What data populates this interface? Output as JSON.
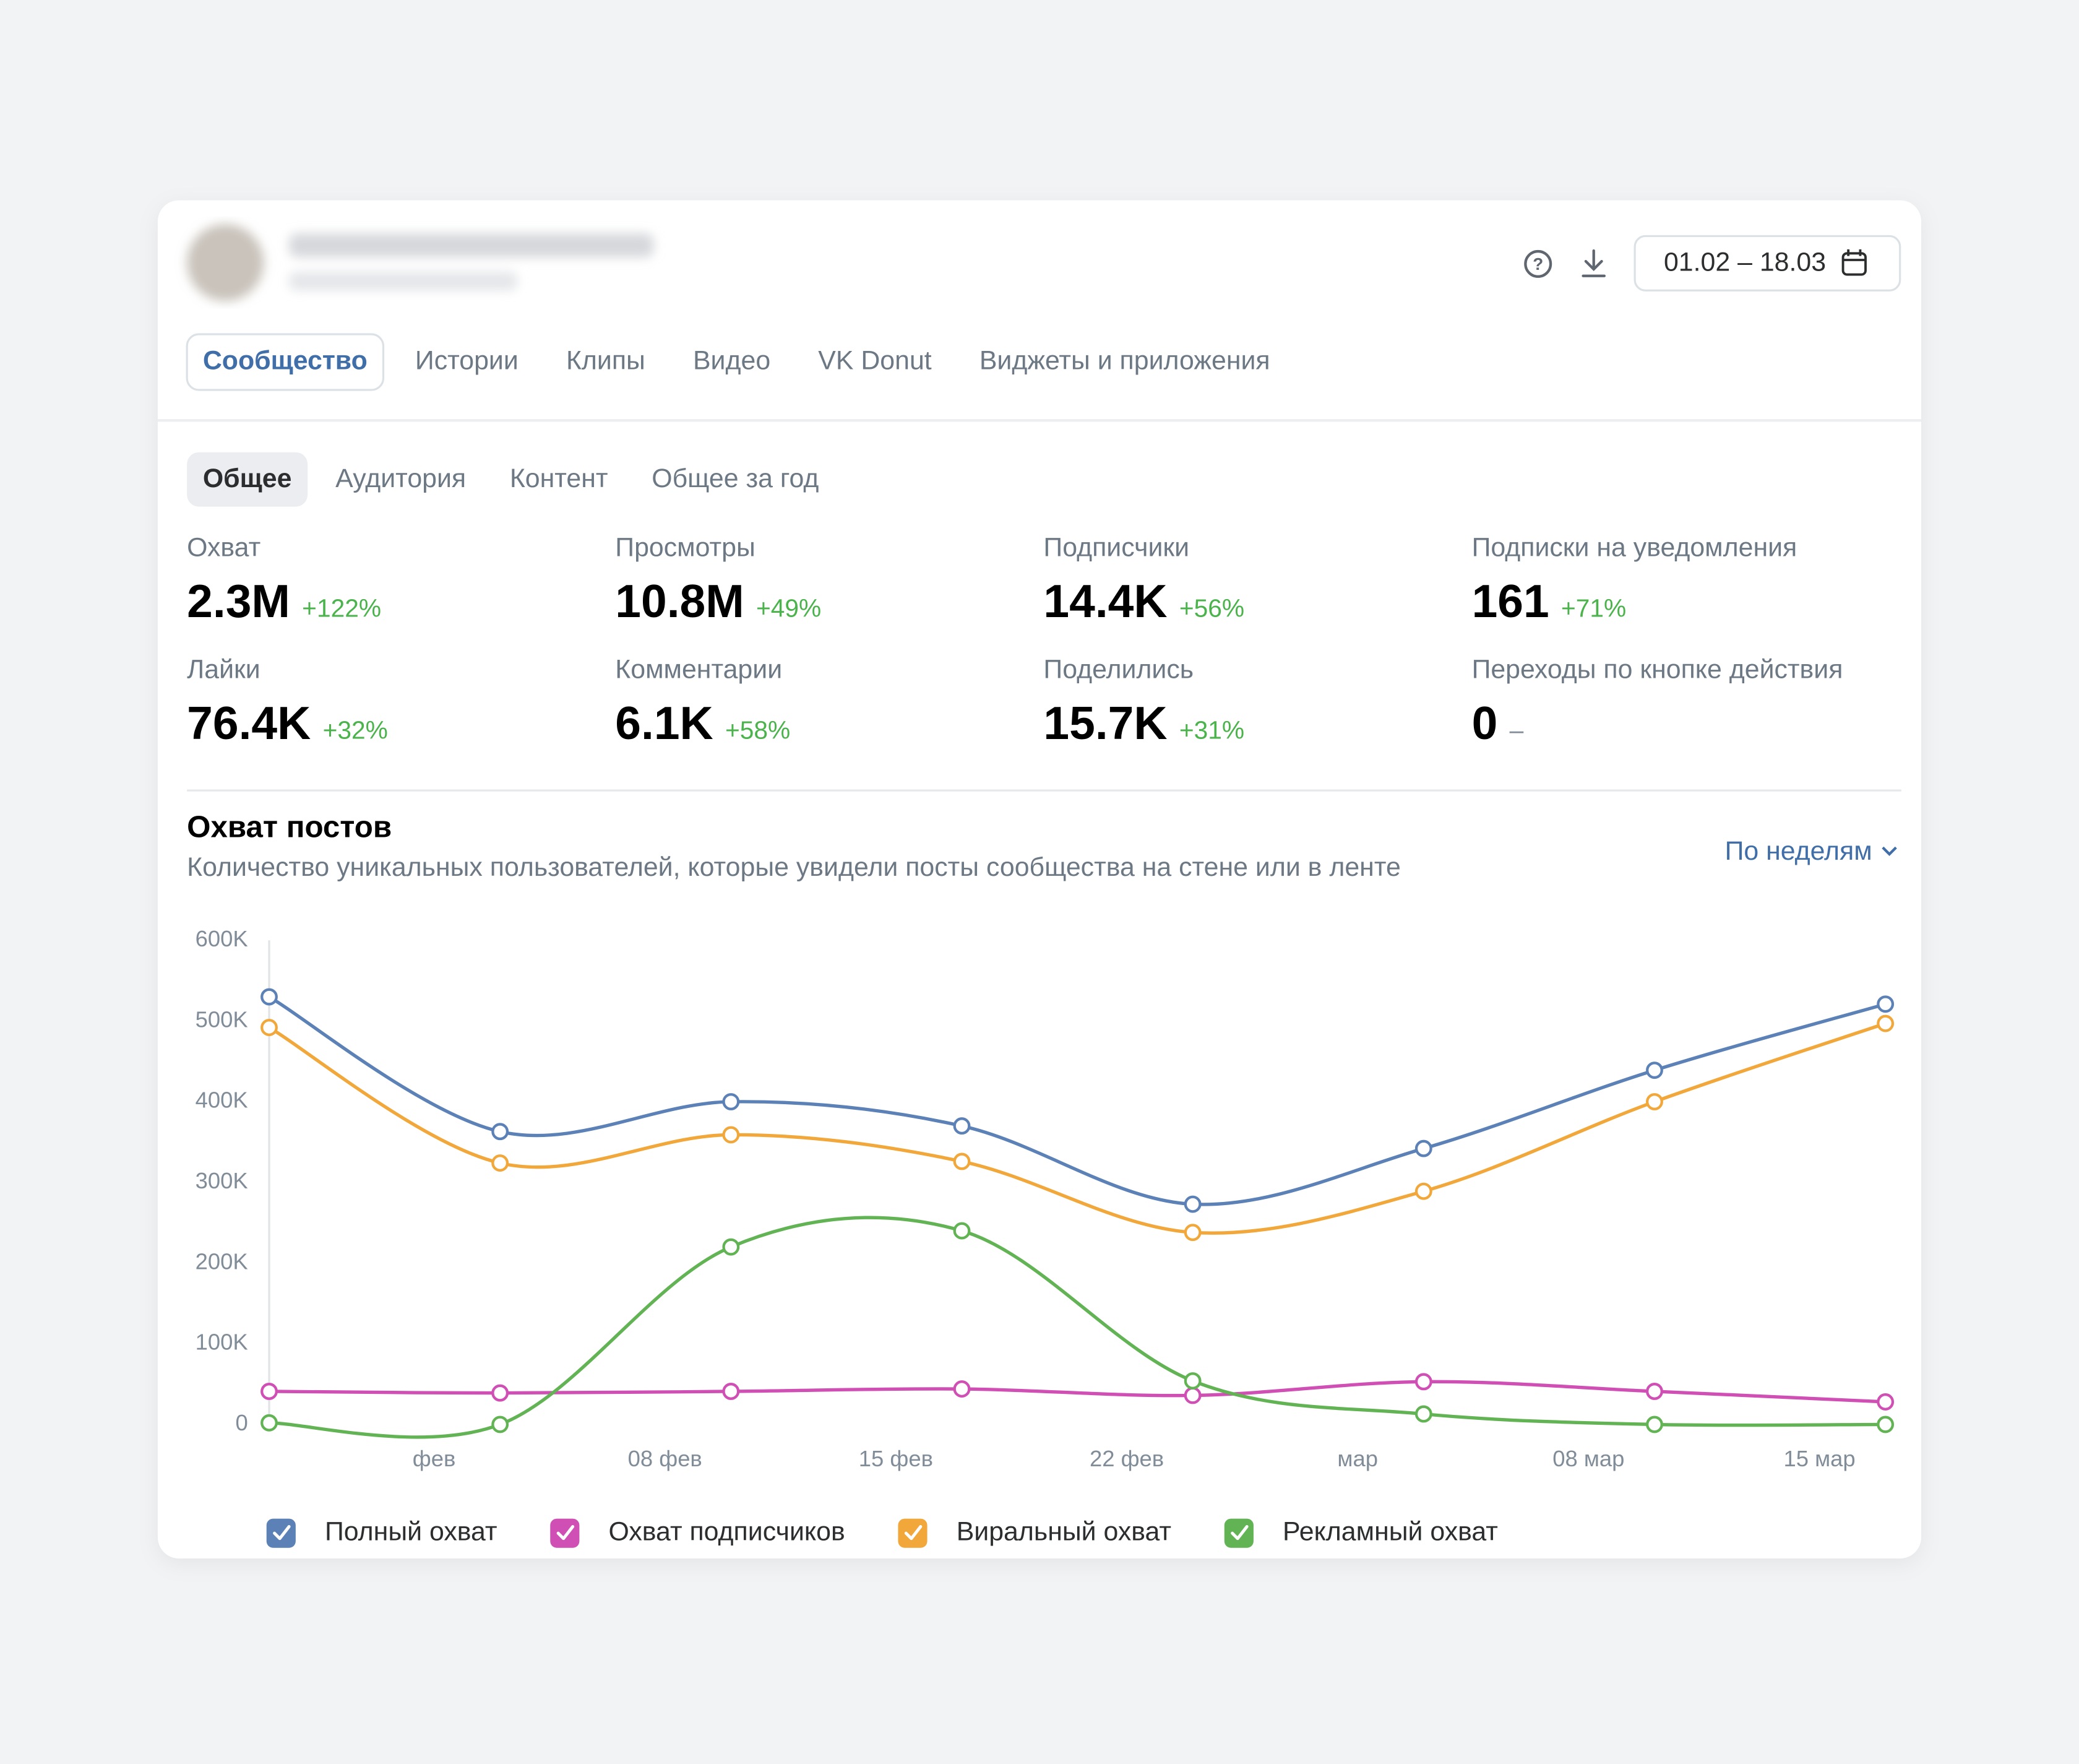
{
  "header": {
    "date_range": "01.02 – 18.03"
  },
  "tabs": [
    "Сообщество",
    "Истории",
    "Клипы",
    "Видео",
    "VK Donut",
    "Виджеты и приложения"
  ],
  "subtabs": [
    "Общее",
    "Аудитория",
    "Контент",
    "Общее за год"
  ],
  "metrics": [
    {
      "label": "Охват",
      "value": "2.3M",
      "change": "+122%"
    },
    {
      "label": "Просмотры",
      "value": "10.8M",
      "change": "+49%"
    },
    {
      "label": "Подписчики",
      "value": "14.4K",
      "change": "+56%"
    },
    {
      "label": "Подписки на уведомления",
      "value": "161",
      "change": "+71%"
    },
    {
      "label": "Лайки",
      "value": "76.4K",
      "change": "+32%"
    },
    {
      "label": "Комментарии",
      "value": "6.1K",
      "change": "+58%"
    },
    {
      "label": "Поделились",
      "value": "15.7K",
      "change": "+31%"
    },
    {
      "label": "Переходы по кнопке действия",
      "value": "0",
      "change": "–"
    }
  ],
  "chart_data": {
    "type": "line",
    "title": "Охват постов",
    "subtitle": "Количество уникальных пользователей, которые увидели посты сообщества на стене или в ленте",
    "period": "По неделям",
    "x": [
      27,
      34,
      41,
      48,
      55,
      62,
      69,
      76
    ],
    "xlim": [
      27,
      76
    ],
    "xticks": [
      {
        "value": 32,
        "label": "фев"
      },
      {
        "value": 39,
        "label": "08 фев"
      },
      {
        "value": 46,
        "label": "15 фев"
      },
      {
        "value": 53,
        "label": "22 фев"
      },
      {
        "value": 60,
        "label": "мар"
      },
      {
        "value": 67,
        "label": "08 мар"
      },
      {
        "value": 74,
        "label": "15 мар"
      }
    ],
    "ylim": [
      0,
      600000
    ],
    "yticks": [
      0,
      {
        "value": 100000,
        "label": "100K"
      },
      {
        "value": 200000,
        "label": "200K"
      },
      {
        "value": 300000,
        "label": "300K"
      },
      {
        "value": 400000,
        "label": "400K"
      },
      {
        "value": 500000,
        "label": "500K"
      },
      {
        "value": 600000,
        "label": "600K"
      }
    ],
    "grid": false,
    "series": [
      {
        "name": "Полный охват",
        "color": "#5b81b7",
        "values": [
          530000,
          363000,
          400000,
          370000,
          273000,
          342000,
          439000,
          521000
        ]
      },
      {
        "name": "Охват подписчиков",
        "color": "#d04fb4",
        "values": [
          41000,
          39000,
          41000,
          44000,
          36000,
          53000,
          41000,
          28000
        ]
      },
      {
        "name": "Виральный охват",
        "color": "#f1a73a",
        "values": [
          492000,
          324000,
          359000,
          326000,
          238000,
          289000,
          400000,
          497000
        ]
      },
      {
        "name": "Рекламный охват",
        "color": "#62b354",
        "values": [
          2000,
          0,
          220000,
          240000,
          54000,
          13000,
          0,
          0
        ]
      }
    ]
  }
}
